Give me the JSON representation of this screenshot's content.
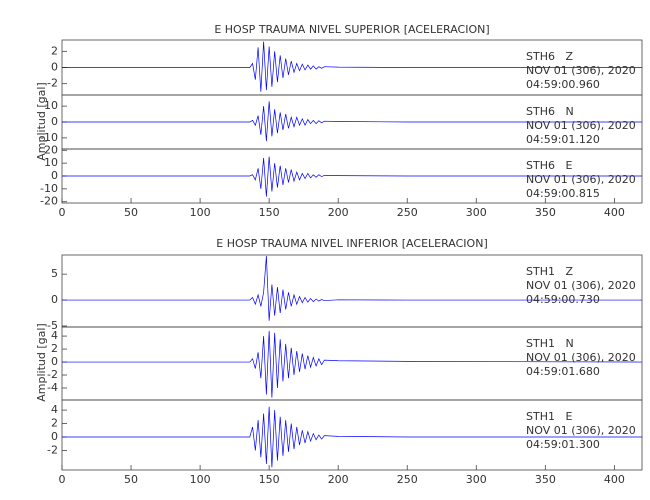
{
  "chart_data": [
    {
      "type": "line",
      "title": "E HOSP TRAUMA NIVEL SUPERIOR [ACELERACION]",
      "y_label": "Amplitud [gal]",
      "color": "#0000ff",
      "xlim": [
        0,
        420
      ],
      "xticks": [
        0,
        50,
        100,
        150,
        200,
        250,
        300,
        350,
        400
      ],
      "x": [
        0,
        136,
        138,
        140,
        142,
        144,
        146,
        148,
        150,
        152,
        154,
        156,
        158,
        160,
        162,
        164,
        166,
        168,
        170,
        172,
        174,
        176,
        178,
        180,
        182,
        184,
        186,
        188,
        190,
        200,
        250,
        420
      ],
      "traces": [
        {
          "station": "STH6   Z",
          "date": "NOV 01 (306), 2020",
          "time": "04:59:00.960",
          "ylim": [
            -3.4,
            3.4
          ],
          "yticks": [
            -2,
            0,
            2
          ],
          "values": [
            0,
            0,
            0.5,
            -1.5,
            2.5,
            -3,
            3.2,
            -2.8,
            2.6,
            -2.4,
            2,
            -1.8,
            1.5,
            -1.3,
            1.1,
            -0.9,
            0.8,
            -0.6,
            0.5,
            -0.4,
            0.4,
            -0.3,
            0.3,
            -0.2,
            0.2,
            -0.2,
            0.1,
            -0.1,
            0.1,
            0.05,
            0,
            0
          ]
        },
        {
          "station": "STH6   N",
          "date": "NOV 01 (306), 2020",
          "time": "04:59:01.120",
          "ylim": [
            -17,
            17
          ],
          "yticks": [
            -10,
            0,
            10
          ],
          "values": [
            0,
            0,
            1,
            -2,
            4,
            -8,
            10,
            -12,
            13,
            -9,
            8,
            -7,
            6,
            -5,
            5,
            -4,
            3,
            -3,
            3,
            -2,
            2,
            -2,
            1.5,
            -1,
            1,
            -1,
            0.8,
            -0.5,
            0.5,
            0.3,
            0,
            0
          ]
        },
        {
          "station": "STH6   E",
          "date": "NOV 01 (306), 2020",
          "time": "04:59:00.815",
          "ylim": [
            -21,
            21
          ],
          "yticks": [
            -20,
            -10,
            0,
            10,
            20
          ],
          "values": [
            0,
            0,
            1,
            -3,
            6,
            -10,
            14,
            -16,
            15,
            -12,
            10,
            -9,
            8,
            -7,
            6,
            -5,
            5,
            -4,
            3,
            -3,
            2,
            -2,
            2,
            -1.5,
            1,
            -1,
            1,
            -0.5,
            0.5,
            0.3,
            0,
            0
          ]
        }
      ]
    },
    {
      "type": "line",
      "title": "E HOSP TRAUMA NIVEL INFERIOR [ACELERACION]",
      "y_label": "Amplitud [gal]",
      "color": "#0000ff",
      "xlim": [
        0,
        420
      ],
      "xticks": [
        0,
        50,
        100,
        150,
        200,
        250,
        300,
        350,
        400
      ],
      "x": [
        0,
        136,
        138,
        140,
        142,
        144,
        146,
        148,
        150,
        152,
        154,
        156,
        158,
        160,
        162,
        164,
        166,
        168,
        170,
        172,
        174,
        176,
        178,
        180,
        182,
        184,
        186,
        188,
        190,
        200,
        250,
        420
      ],
      "traces": [
        {
          "station": "STH1   Z",
          "date": "NOV 01 (306), 2020",
          "time": "04:59:00.730",
          "ylim": [
            -5.2,
            8.7
          ],
          "yticks": [
            -5,
            0,
            5
          ],
          "values": [
            0,
            0,
            0.5,
            -0.8,
            1,
            -1.2,
            1.5,
            8.5,
            -4,
            3,
            -3,
            2.5,
            -2.5,
            2,
            -1.8,
            1.5,
            -1.2,
            1,
            -0.8,
            0.7,
            -0.5,
            0.5,
            -0.4,
            0.3,
            -0.3,
            0.2,
            -0.2,
            0.1,
            -0.1,
            0.05,
            0,
            0
          ]
        },
        {
          "station": "STH1   N",
          "date": "NOV 01 (306), 2020",
          "time": "04:59:01.680",
          "ylim": [
            -5.85,
            5.4
          ],
          "yticks": [
            -4,
            -2,
            0,
            2,
            4
          ],
          "values": [
            0,
            0,
            0.5,
            -1,
            1.5,
            -2.5,
            4,
            -5,
            4.8,
            -5.5,
            4.5,
            -4,
            3.5,
            -3,
            2.8,
            -2.5,
            2.2,
            -2,
            1.7,
            -1.5,
            1.3,
            -1.1,
            1,
            -0.8,
            0.7,
            -0.6,
            0.5,
            -0.4,
            0.3,
            0.2,
            0.1,
            0
          ]
        },
        {
          "station": "STH1   E",
          "date": "NOV 01 (306), 2020",
          "time": "04:59:01.300",
          "ylim": [
            -4.9,
            5.5
          ],
          "yticks": [
            -2,
            0,
            2,
            4
          ],
          "values": [
            0,
            0,
            1.5,
            -2,
            2.5,
            -3,
            3.5,
            -4,
            4.5,
            -4.5,
            4,
            -3.5,
            3,
            -2.8,
            2.5,
            -2.2,
            2,
            -1.8,
            1.5,
            -1.2,
            1,
            -0.9,
            0.8,
            -0.6,
            0.5,
            -0.4,
            0.3,
            -0.3,
            0.2,
            0.1,
            0,
            0
          ]
        }
      ]
    }
  ]
}
